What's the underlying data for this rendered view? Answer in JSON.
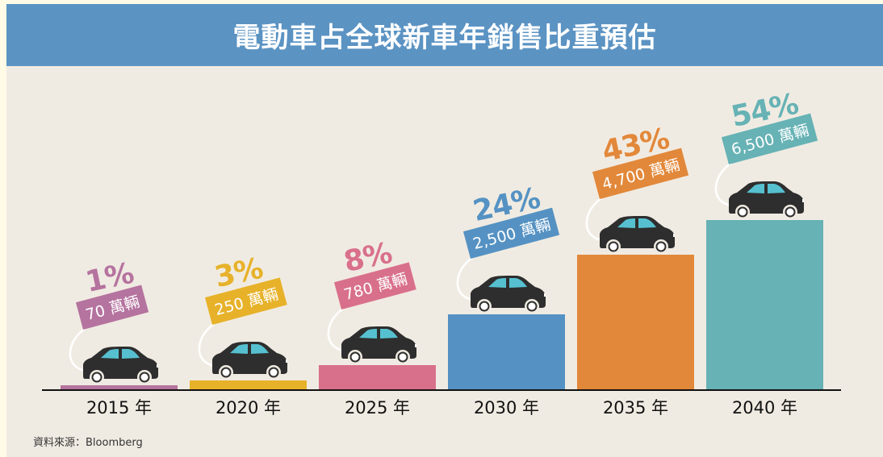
{
  "title": "電動車占全球新車年銷售比重預估",
  "source": "資料來源：Bloomberg",
  "chart_data": {
    "type": "bar",
    "title": "電動車占全球新車年銷售比重預估",
    "categories": [
      "2015 年",
      "2020 年",
      "2025 年",
      "2030 年",
      "2035 年",
      "2040 年"
    ],
    "share_percent_labels": [
      "1%",
      "3%",
      "8%",
      "24%",
      "43%",
      "54%"
    ],
    "share_percent": [
      1,
      3,
      8,
      24,
      43,
      54
    ],
    "sales_labels": [
      "70 萬輛",
      "250 萬輛",
      "780 萬輛",
      "2,500 萬輛",
      "4,700 萬輛",
      "6,500 萬輛"
    ],
    "sales_10k_units": [
      70,
      250,
      780,
      2500,
      4700,
      6500
    ],
    "colors": [
      "#b5739f",
      "#e7b22a",
      "#d9708b",
      "#5592c3",
      "#e2883a",
      "#66b2b5"
    ],
    "xlabel": "",
    "ylabel": "",
    "grid": false
  }
}
